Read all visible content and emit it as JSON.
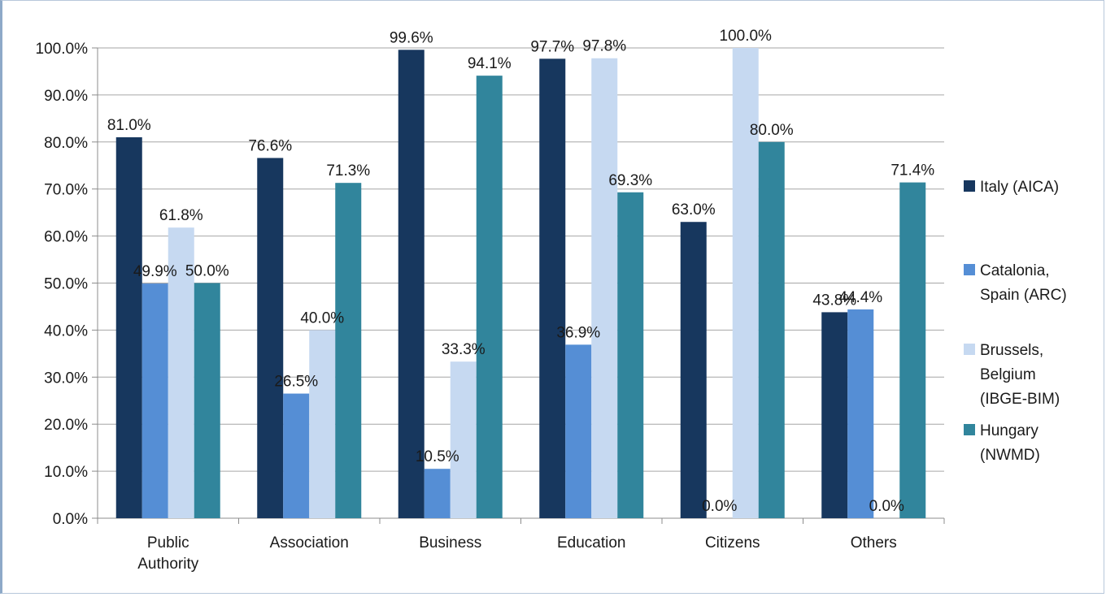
{
  "chart_data": {
    "type": "bar",
    "categories": [
      [
        "Public",
        "Authority"
      ],
      [
        "Association"
      ],
      [
        "Business"
      ],
      [
        "Education"
      ],
      [
        "Citizens"
      ],
      [
        "Others"
      ]
    ],
    "series": [
      {
        "name": "Italy (AICA)",
        "legend_lines": [
          "Italy (AICA)"
        ],
        "color": "#17375e",
        "values": [
          81.0,
          76.6,
          99.6,
          97.7,
          63.0,
          43.8
        ],
        "labels": [
          "81.0%",
          "76.6%",
          "99.6%",
          "97.7%",
          "63.0%",
          "43.8%"
        ]
      },
      {
        "name": "Catalonia, Spain (ARC)",
        "legend_lines": [
          "Catalonia,",
          "Spain (ARC)"
        ],
        "color": "#558ed5",
        "values": [
          49.9,
          26.5,
          10.5,
          36.9,
          0.0,
          44.4
        ],
        "labels": [
          "49.9%",
          "26.5%",
          "10.5%",
          "36.9%",
          "0.0%",
          "44.4%"
        ]
      },
      {
        "name": "Brussels, Belgium (IBGE-BIM)",
        "legend_lines": [
          "Brussels,",
          "Belgium",
          "(IBGE-BIM)"
        ],
        "color": "#c6d9f1",
        "values": [
          61.8,
          40.0,
          33.3,
          97.8,
          100.0,
          0.0
        ],
        "labels": [
          "61.8%",
          "40.0%",
          "33.3%",
          "97.8%",
          "100.0%",
          "0.0%"
        ]
      },
      {
        "name": "Hungary (NWMD)",
        "legend_lines": [
          "Hungary",
          "(NWMD)"
        ],
        "color": "#31859c",
        "values": [
          50.0,
          71.3,
          94.1,
          69.3,
          80.0,
          71.4
        ],
        "labels": [
          "50.0%",
          "71.3%",
          "94.1%",
          "69.3%",
          "80.0%",
          "71.4%"
        ]
      }
    ],
    "yticks": [
      "0.0%",
      "10.0%",
      "20.0%",
      "30.0%",
      "40.0%",
      "50.0%",
      "60.0%",
      "70.0%",
      "80.0%",
      "90.0%",
      "100.0%"
    ],
    "ylim": [
      0,
      100
    ],
    "grid": true,
    "legend": "right",
    "gridline_color": "#a6a6a6",
    "axis_color": "#8c8c8c"
  }
}
